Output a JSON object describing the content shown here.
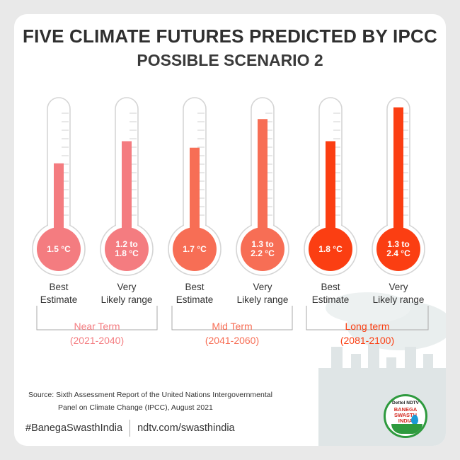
{
  "title": "FIVE CLIMATE FUTURES PREDICTED BY IPCC",
  "subtitle": "POSSIBLE SCENARIO 2",
  "thermometers": [
    {
      "value_text_1": "1.5 °C",
      "value_text_2": "",
      "label_1": "Best",
      "label_2": "Estimate",
      "fill_level": 0.55,
      "color": "#f47c80"
    },
    {
      "value_text_1": "1.2 to",
      "value_text_2": "1.8 °C",
      "label_1": "Very",
      "label_2": "Likely range",
      "fill_level": 0.72,
      "color": "#f47c80"
    },
    {
      "value_text_1": "1.7 °C",
      "value_text_2": "",
      "label_1": "Best",
      "label_2": "Estimate",
      "fill_level": 0.67,
      "color": "#f76e55"
    },
    {
      "value_text_1": "1.3 to",
      "value_text_2": "2.2 °C",
      "label_1": "Very",
      "label_2": "Likely range",
      "fill_level": 0.89,
      "color": "#f76e55"
    },
    {
      "value_text_1": "1.8 °C",
      "value_text_2": "",
      "label_1": "Best",
      "label_2": "Estimate",
      "fill_level": 0.72,
      "color": "#fb3e12"
    },
    {
      "value_text_1": "1.3 to",
      "value_text_2": "2.4 °C",
      "label_1": "Very",
      "label_2": "Likely range",
      "fill_level": 0.98,
      "color": "#fb3e12"
    }
  ],
  "groups": [
    {
      "name": "Near Term",
      "years": "(2021-2040)",
      "color": "#f47c80"
    },
    {
      "name": "Mid Term",
      "years": "(2041-2060)",
      "color": "#f76e55"
    },
    {
      "name": "Long term",
      "years": "(2081-2100)",
      "color": "#fb3e12"
    }
  ],
  "source_line_1": "Source: Sixth Assessment Report of the United Nations Intergovernmental",
  "source_line_2": "Panel on Climate Change (IPCC), August 2021",
  "footer": {
    "hashtag": "#BanegaSwasthIndia",
    "url": "ndtv.com/swasthindia"
  },
  "logo": {
    "dettol": "Dettol",
    "ndtv": "NDTV",
    "brand_1": "BANEGA",
    "brand_2": "SWASTH",
    "brand_3": "INDIA"
  }
}
